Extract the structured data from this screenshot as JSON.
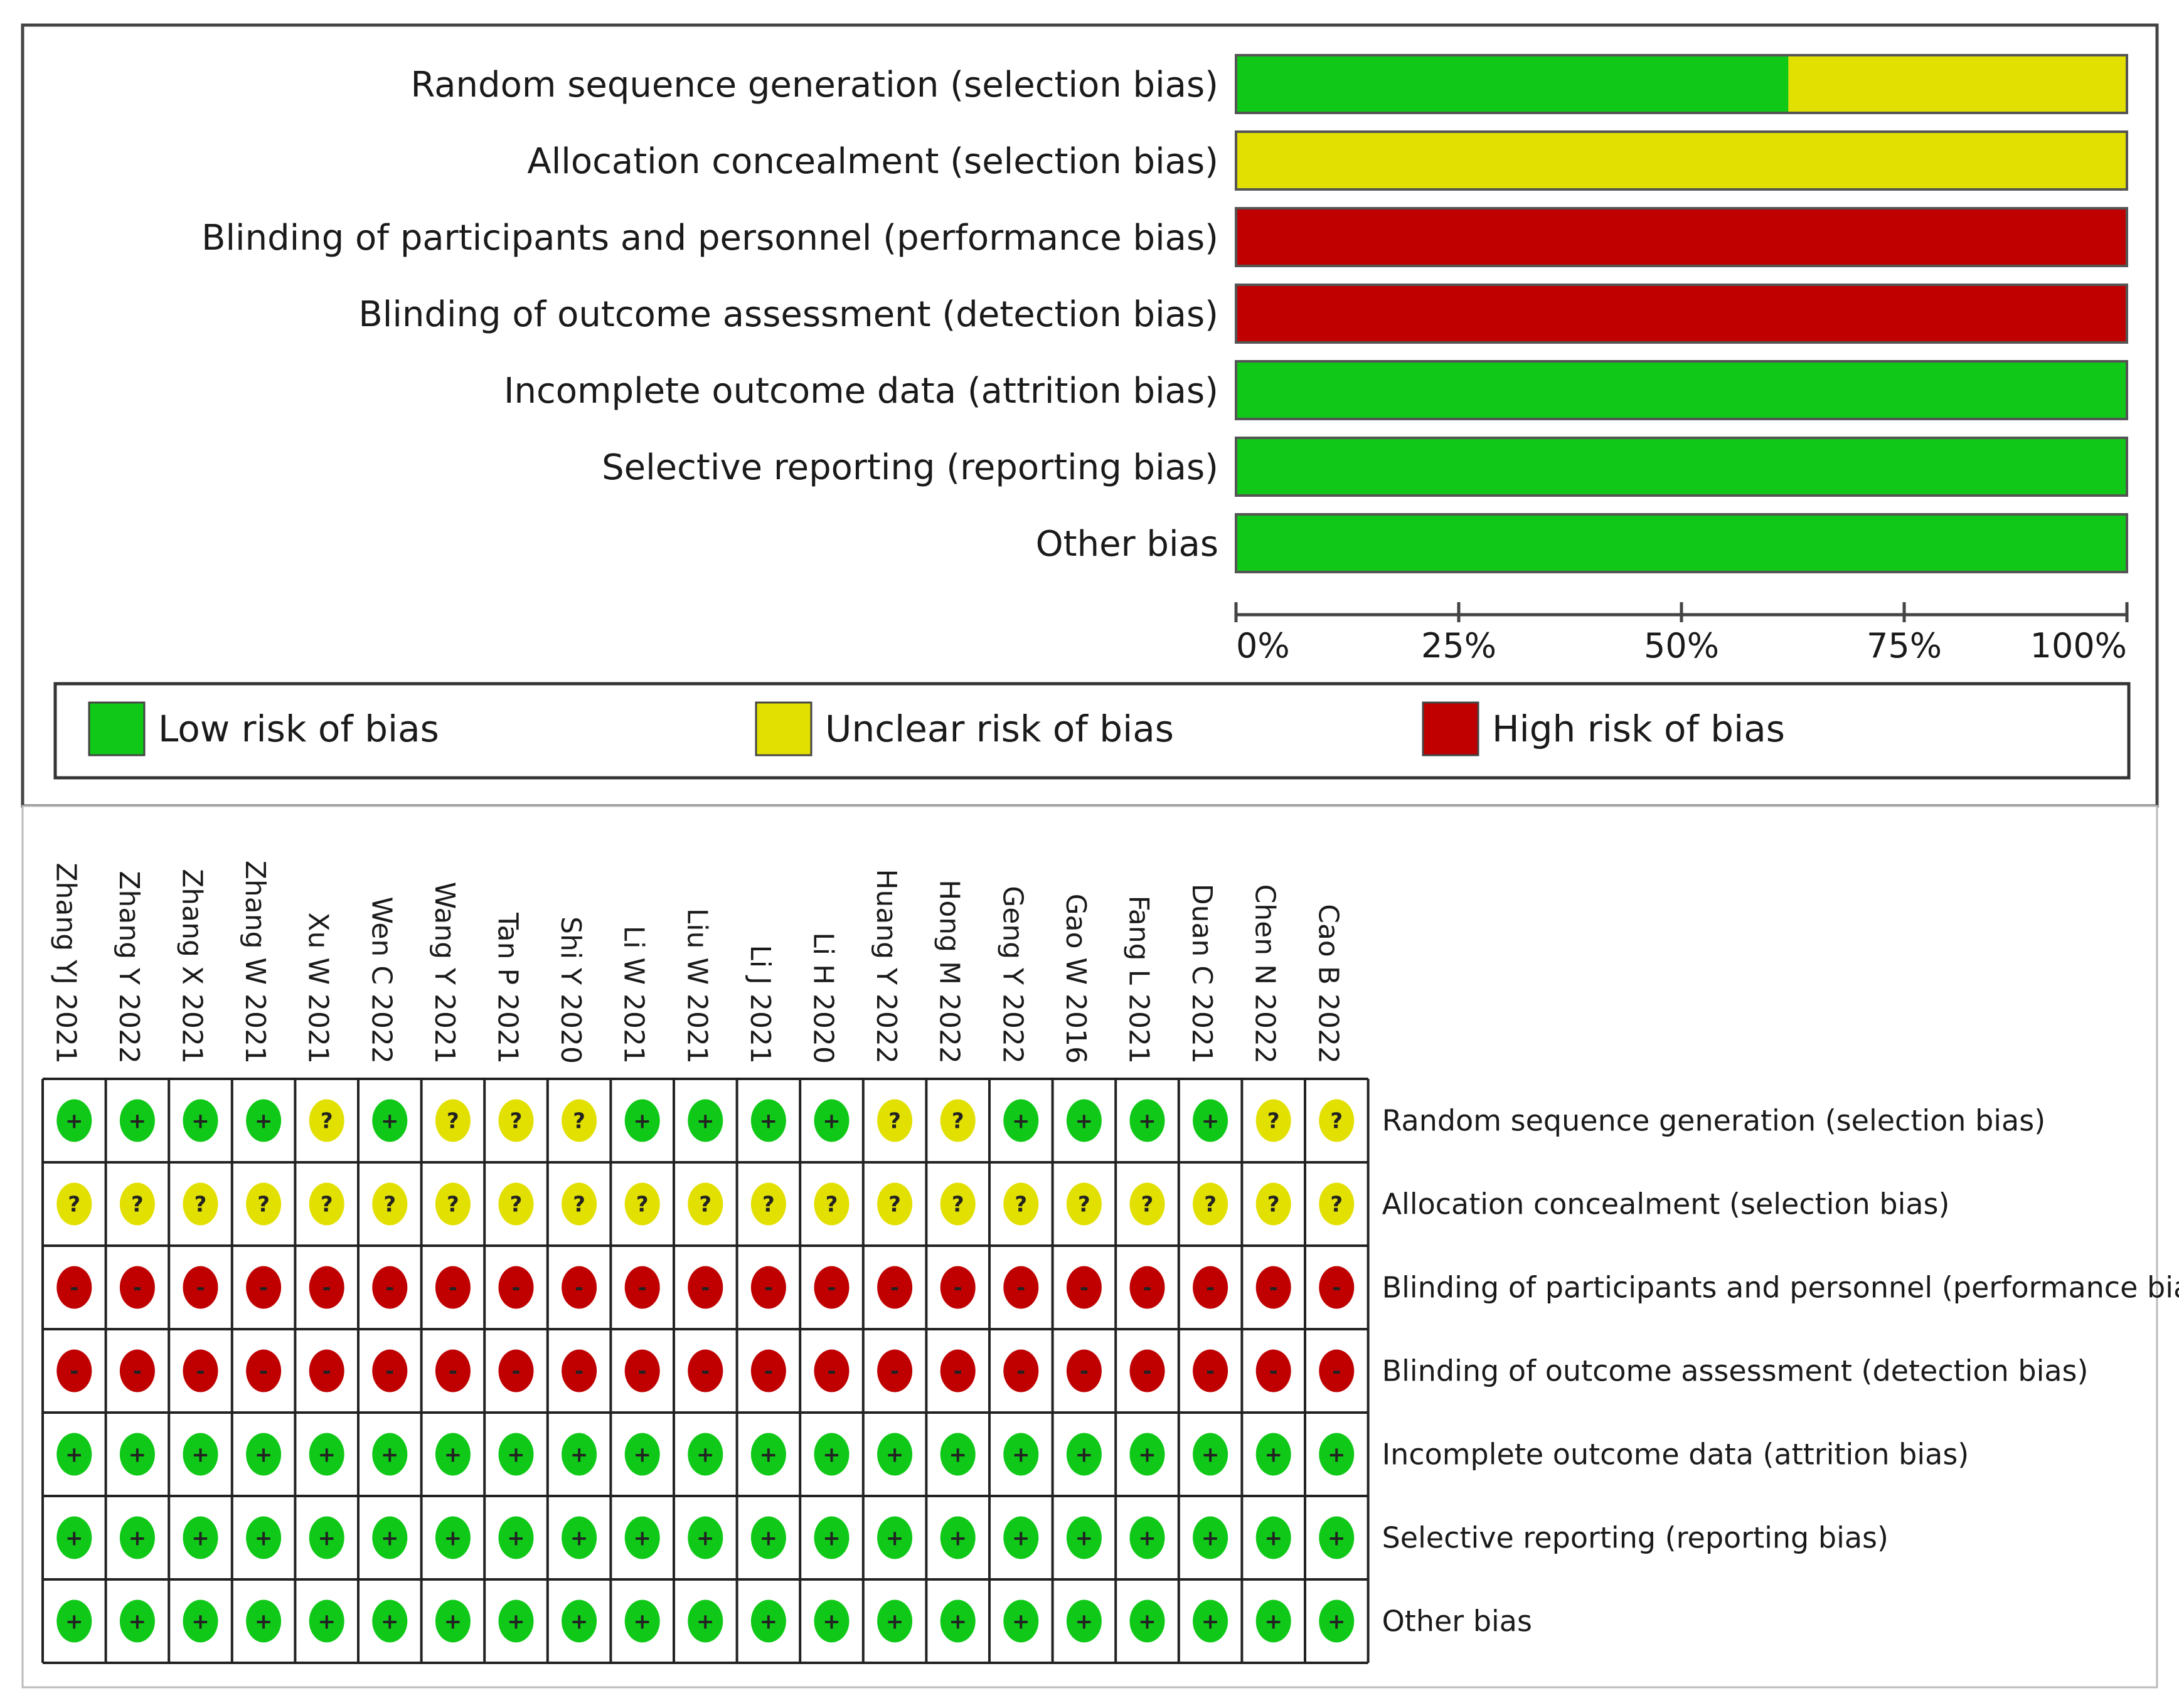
{
  "colors": {
    "low": "#10c818",
    "unclear": "#e2e000",
    "high": "#c00000",
    "frame": "#333333"
  },
  "chart_data": [
    {
      "type": "bar",
      "orientation": "horizontal",
      "stacked": true,
      "title": "",
      "categories": [
        "Random sequence generation (selection bias)",
        "Allocation concealment (selection bias)",
        "Blinding of participants and personnel (performance bias)",
        "Blinding of outcome assessment (detection bias)",
        "Incomplete outcome data (attrition bias)",
        "Selective reporting (reporting bias)",
        "Other bias"
      ],
      "series": [
        {
          "name": "Low risk of bias",
          "color_key": "low",
          "values": [
            62,
            0,
            0,
            0,
            100,
            100,
            100
          ]
        },
        {
          "name": "Unclear risk of bias",
          "color_key": "unclear",
          "values": [
            38,
            100,
            0,
            0,
            0,
            0,
            0
          ]
        },
        {
          "name": "High risk of bias",
          "color_key": "high",
          "values": [
            0,
            0,
            100,
            100,
            0,
            0,
            0
          ]
        }
      ],
      "xlim": [
        0,
        100
      ],
      "ticks": [
        "0%",
        "25%",
        "50%",
        "75%",
        "100%"
      ],
      "xlabel": "",
      "ylabel": "",
      "legend": [
        "Low risk of bias",
        "Unclear risk of bias",
        "High risk of bias"
      ]
    },
    {
      "type": "table",
      "title": "",
      "studies": [
        "Zhang YJ 2021",
        "Zhang Y 2022",
        "Zhang X 2021",
        "Zhang W 2021",
        "Xu W 2021",
        "Wen C 2022",
        "Wang Y 2021",
        "Tan P 2021",
        "Shi Y 2020",
        "Li W 2021",
        "Liu W 2021",
        "Li J 2021",
        "Li H 2020",
        "Huang Y 2022",
        "Hong M 2022",
        "Geng Y 2022",
        "Gao W 2016",
        "Fang L 2021",
        "Duan C 2021",
        "Chen N 2022",
        "Cao B 2022"
      ],
      "domains": [
        "Random sequence generation (selection bias)",
        "Allocation concealment (selection bias)",
        "Blinding of participants and personnel (performance bias)",
        "Blinding of outcome assessment (detection bias)",
        "Incomplete outcome data (attrition bias)",
        "Selective reporting (reporting bias)",
        "Other bias"
      ],
      "symbols": {
        "low": "+",
        "unclear": "?",
        "high": "-"
      },
      "judgements": [
        [
          "low",
          "low",
          "low",
          "low",
          "unclear",
          "low",
          "unclear",
          "unclear",
          "unclear",
          "low",
          "low",
          "low",
          "low",
          "unclear",
          "unclear",
          "low",
          "low",
          "low",
          "low",
          "unclear",
          "unclear"
        ],
        [
          "unclear",
          "unclear",
          "unclear",
          "unclear",
          "unclear",
          "unclear",
          "unclear",
          "unclear",
          "unclear",
          "unclear",
          "unclear",
          "unclear",
          "unclear",
          "unclear",
          "unclear",
          "unclear",
          "unclear",
          "unclear",
          "unclear",
          "unclear",
          "unclear"
        ],
        [
          "high",
          "high",
          "high",
          "high",
          "high",
          "high",
          "high",
          "high",
          "high",
          "high",
          "high",
          "high",
          "high",
          "high",
          "high",
          "high",
          "high",
          "high",
          "high",
          "high",
          "high"
        ],
        [
          "high",
          "high",
          "high",
          "high",
          "high",
          "high",
          "high",
          "high",
          "high",
          "high",
          "high",
          "high",
          "high",
          "high",
          "high",
          "high",
          "high",
          "high",
          "high",
          "high",
          "high"
        ],
        [
          "low",
          "low",
          "low",
          "low",
          "low",
          "low",
          "low",
          "low",
          "low",
          "low",
          "low",
          "low",
          "low",
          "low",
          "low",
          "low",
          "low",
          "low",
          "low",
          "low",
          "low"
        ],
        [
          "low",
          "low",
          "low",
          "low",
          "low",
          "low",
          "low",
          "low",
          "low",
          "low",
          "low",
          "low",
          "low",
          "low",
          "low",
          "low",
          "low",
          "low",
          "low",
          "low",
          "low"
        ],
        [
          "low",
          "low",
          "low",
          "low",
          "low",
          "low",
          "low",
          "low",
          "low",
          "low",
          "low",
          "low",
          "low",
          "low",
          "low",
          "low",
          "low",
          "low",
          "low",
          "low",
          "low"
        ]
      ]
    }
  ]
}
